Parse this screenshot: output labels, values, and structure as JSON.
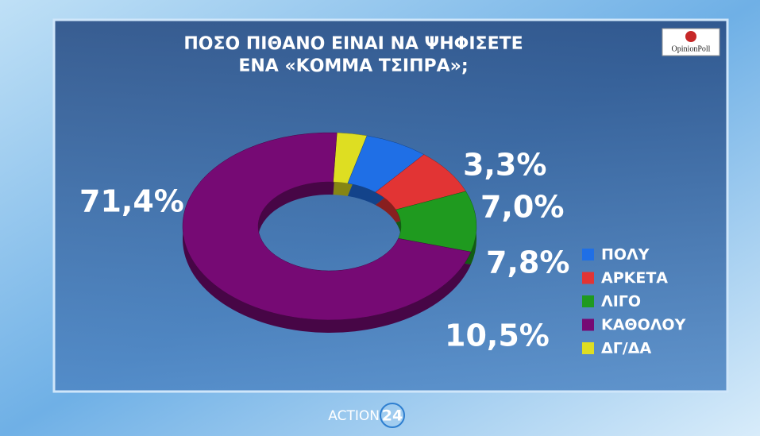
{
  "chart_data": {
    "type": "donut",
    "title": [
      "ΠΟΣΟ ΠΙΘΑΝΟ ΕΙΝΑΙ ΝΑ ΨΗΦΙΣΕΤΕ",
      "ΕΝΑ «ΚΟΜΜΑ ΤΣΙΠΡΑ»;"
    ],
    "categories": [
      "ΠΟΛΥ",
      "ΑΡΚΕΤΑ",
      "ΛΙΓΟ",
      "ΚΑΘΟΛΟΥ",
      "ΔΓ/ΔΑ"
    ],
    "values": [
      7.0,
      7.8,
      10.5,
      71.4,
      3.3
    ],
    "value_labels": [
      "7,0%",
      "7,8%",
      "10,5%",
      "71,4%",
      "3,3%"
    ],
    "colors": [
      "#1f6fe6",
      "#e23434",
      "#1f9a1f",
      "#760a74",
      "#dede22"
    ],
    "legend": "right"
  },
  "branding": {
    "logo": "OpinionPoll",
    "channel": "ACTION",
    "channel_number": "24"
  }
}
